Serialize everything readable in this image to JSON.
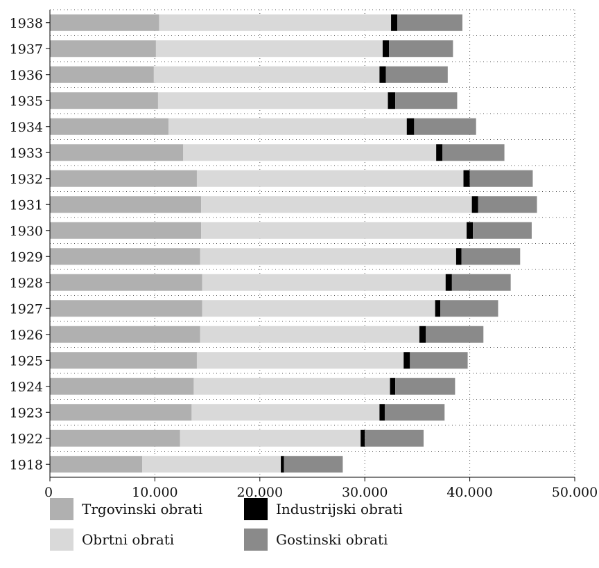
{
  "chart_data": {
    "type": "bar",
    "orientation": "horizontal",
    "stacked": true,
    "title": "",
    "xlabel": "",
    "ylabel": "",
    "xlim": [
      0,
      50000
    ],
    "x_ticks": [
      0,
      10000,
      20000,
      30000,
      40000,
      50000
    ],
    "x_tick_labels": [
      "0",
      "10.000",
      "20.000",
      "30.000",
      "40.000",
      "50.000"
    ],
    "grid": true,
    "legend_position": "bottom",
    "categories": [
      "1938",
      "1937",
      "1936",
      "1935",
      "1934",
      "1933",
      "1932",
      "1931",
      "1930",
      "1929",
      "1928",
      "1927",
      "1926",
      "1925",
      "1924",
      "1923",
      "1922",
      "1918"
    ],
    "series": [
      {
        "name": "Trgovinski obrati",
        "color": "#b0b0b0",
        "values": [
          10400,
          10100,
          9900,
          10300,
          11300,
          12700,
          14000,
          14400,
          14400,
          14300,
          14500,
          14500,
          14300,
          14000,
          13700,
          13500,
          12400,
          8800
        ]
      },
      {
        "name": "Obrtni obrati",
        "color": "#d9d9d9",
        "values": [
          22100,
          21600,
          21500,
          21900,
          22700,
          24100,
          25400,
          25800,
          25300,
          24400,
          23200,
          22200,
          20900,
          19700,
          18700,
          17900,
          17200,
          13200
        ]
      },
      {
        "name": "Industrijski obrati",
        "color": "#000000",
        "values": [
          600,
          600,
          600,
          700,
          700,
          600,
          600,
          600,
          600,
          500,
          600,
          500,
          600,
          600,
          500,
          500,
          400,
          300
        ]
      },
      {
        "name": "Gostinski obrati",
        "color": "#8a8a8a",
        "values": [
          6200,
          6100,
          5900,
          5900,
          5900,
          5900,
          6000,
          5600,
          5600,
          5600,
          5600,
          5500,
          5500,
          5500,
          5700,
          5700,
          5600,
          5600
        ]
      }
    ]
  }
}
